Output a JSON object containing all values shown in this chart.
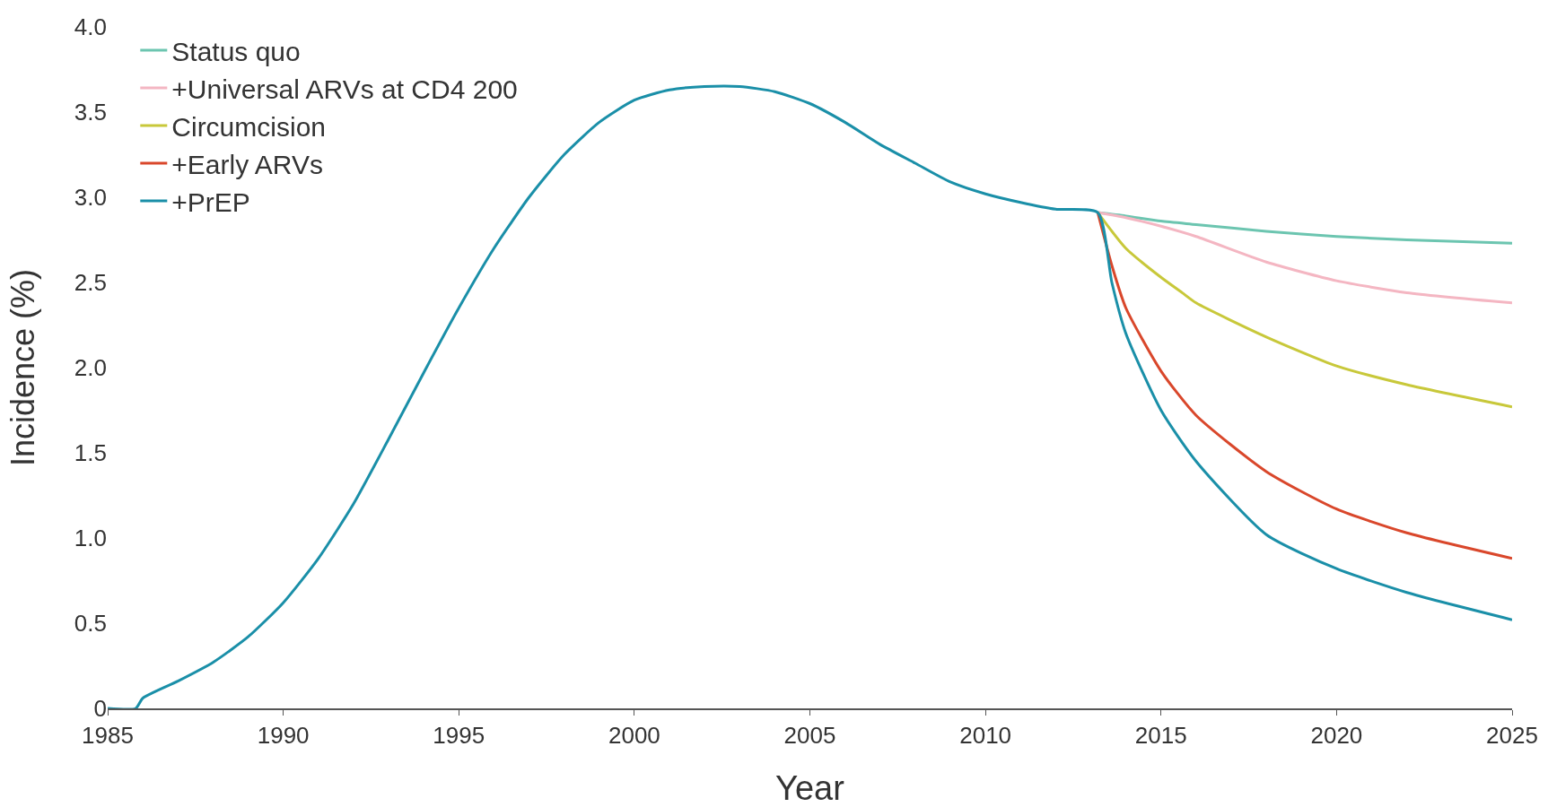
{
  "chart_data": {
    "type": "line",
    "xlabel": "Year",
    "ylabel": "Incidence (%)",
    "xlim": [
      1985,
      2025
    ],
    "xticks": [
      1985,
      1990,
      1995,
      2000,
      2005,
      2010,
      2015,
      2020,
      2025
    ],
    "ylim": [
      0,
      4
    ],
    "yticks": [
      {
        "value": 0,
        "label": "0"
      },
      {
        "value": 0.5,
        "label": "0.5"
      },
      {
        "value": 1,
        "label": "1.0"
      },
      {
        "value": 1.5,
        "label": "1.5"
      },
      {
        "value": 2,
        "label": "2.0"
      },
      {
        "value": 2.5,
        "label": "2.5"
      },
      {
        "value": 3,
        "label": "3.0"
      },
      {
        "value": 3.5,
        "label": "3.5"
      },
      {
        "value": 4,
        "label": "4.0"
      }
    ],
    "grid": false,
    "legend": "top left",
    "marker": "none",
    "line_style": "solid",
    "series": [
      {
        "name": "Status quo",
        "color": "#6cc5b0",
        "x": [
          2013.2,
          2014,
          2015,
          2016,
          2018,
          2020,
          2022,
          2025
        ],
        "values": [
          2.91,
          2.89,
          2.86,
          2.84,
          2.8,
          2.77,
          2.75,
          2.73
        ]
      },
      {
        "name": "+Universal ARVs at CD4 200",
        "color": "#f4b6c2",
        "x": [
          2013.2,
          2014,
          2015,
          2016,
          2018,
          2020,
          2022,
          2025
        ],
        "values": [
          2.91,
          2.88,
          2.83,
          2.77,
          2.62,
          2.51,
          2.44,
          2.38
        ]
      },
      {
        "name": "Circumcision",
        "color": "#c8c83a",
        "x": [
          2013.2,
          2014,
          2015,
          2015.6,
          2016,
          2018,
          2020,
          2022,
          2025
        ],
        "values": [
          2.91,
          2.7,
          2.53,
          2.44,
          2.38,
          2.18,
          2.01,
          1.9,
          1.77
        ]
      },
      {
        "name": "+Early ARVs",
        "color": "#d9472b",
        "x": [
          2013.2,
          2013.6,
          2014,
          2015,
          2016,
          2018,
          2020,
          2022,
          2025
        ],
        "values": [
          2.91,
          2.6,
          2.35,
          1.98,
          1.72,
          1.39,
          1.17,
          1.03,
          0.88
        ]
      },
      {
        "name": "+PrEP",
        "color": "#1a8fa8",
        "x": [
          1985,
          1985.8,
          1986,
          1987,
          1988,
          1989,
          1990,
          1991,
          1992,
          1993,
          1994,
          1995,
          1996,
          1997,
          1998,
          1999,
          2000,
          2001,
          2002,
          2003,
          2004,
          2005,
          2006,
          2007,
          2008,
          2009,
          2010,
          2011,
          2012,
          2013.2,
          2013.6,
          2014,
          2015,
          2016,
          2018,
          2020,
          2022,
          2025
        ],
        "values": [
          0,
          0,
          0.06,
          0.16,
          0.27,
          0.42,
          0.62,
          0.88,
          1.2,
          1.58,
          1.97,
          2.35,
          2.7,
          3.0,
          3.25,
          3.44,
          3.57,
          3.63,
          3.65,
          3.65,
          3.62,
          3.55,
          3.44,
          3.31,
          3.2,
          3.09,
          3.02,
          2.97,
          2.93,
          2.91,
          2.5,
          2.2,
          1.75,
          1.45,
          1.02,
          0.82,
          0.68,
          0.52
        ]
      }
    ]
  }
}
